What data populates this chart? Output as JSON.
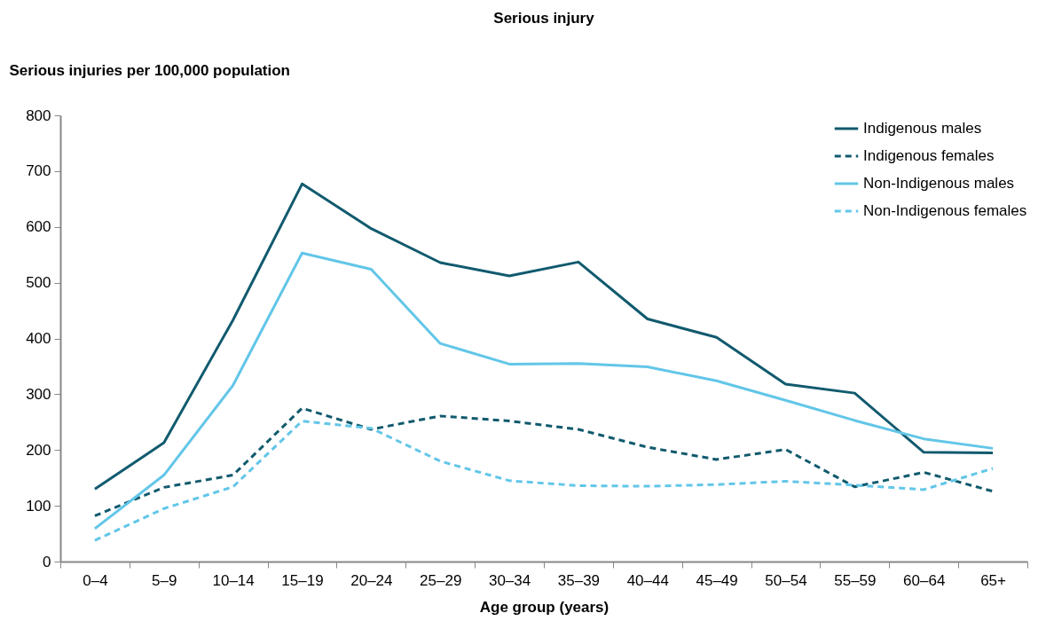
{
  "chart_data": {
    "type": "line",
    "title": "Serious injury",
    "xlabel": "Age group (years)",
    "ylabel": "Serious injuries per 100,000 population",
    "categories": [
      "0–4",
      "5–9",
      "10–14",
      "15–19",
      "20–24",
      "25–29",
      "30–34",
      "35–39",
      "40–44",
      "45–49",
      "50–54",
      "55–59",
      "60–64",
      "65+"
    ],
    "ylim": [
      0,
      800
    ],
    "yticks": [
      0,
      100,
      200,
      300,
      400,
      500,
      600,
      700,
      800
    ],
    "grid": false,
    "legend": "top right",
    "marker": "none",
    "series": [
      {
        "name": "Indigenous males",
        "color": "#115a6e",
        "line_style": "solid",
        "values": [
          130,
          213,
          433,
          677,
          597,
          536,
          512,
          537,
          435,
          402,
          318,
          302,
          196,
          195
        ]
      },
      {
        "name": "Indigenous females",
        "color": "#115a6e",
        "line_style": "dashed",
        "values": [
          82,
          133,
          155,
          275,
          237,
          261,
          252,
          237,
          205,
          183,
          201,
          134,
          160,
          126
        ]
      },
      {
        "name": "Non-Indigenous males",
        "color": "#62c6e8",
        "line_style": "solid",
        "values": [
          59,
          155,
          316,
          553,
          524,
          391,
          354,
          355,
          349,
          324,
          289,
          253,
          220,
          203
        ]
      },
      {
        "name": "Non-Indigenous females",
        "color": "#62c6e8",
        "line_style": "dashed",
        "values": [
          38,
          95,
          134,
          252,
          239,
          180,
          145,
          136,
          135,
          138,
          144,
          137,
          129,
          167
        ]
      }
    ]
  }
}
